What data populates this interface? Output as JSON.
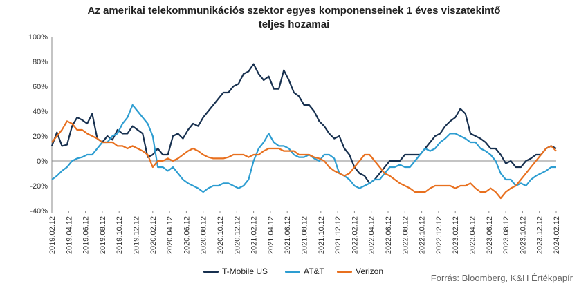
{
  "chart_data": {
    "type": "line",
    "title_line1": "Az amerikai telekommunikációs szektor egyes komponenseinek 1  éves viszatekintő",
    "title_line2": "teljes hozamai",
    "xlabel": "",
    "ylabel": "",
    "ylim": [
      -40,
      100
    ],
    "yticks": [
      "-40%",
      "-20%",
      "0%",
      "20%",
      "40%",
      "60%",
      "80%",
      "100%"
    ],
    "ytick_values": [
      -40,
      -20,
      0,
      20,
      40,
      60,
      80,
      100
    ],
    "xticks": [
      "2019.02.12",
      "2019.04.12",
      "2019.06.12",
      "2019.08.12",
      "2019.10.12",
      "2019.12.12",
      "2020.02.12",
      "2020.04.12",
      "2020.06.12",
      "2020.08.12",
      "2020.10.12",
      "2020.12.12",
      "2021.02.12",
      "2021.04.12",
      "2021.06.12",
      "2021.08.12",
      "2021.10.12",
      "2021.12.12",
      "2022.02.12",
      "2022.04.12",
      "2022.06.12",
      "2022.08.12",
      "2022.10.12",
      "2022.12.12",
      "2023.02.12",
      "2023.04.12",
      "2023.06.12",
      "2023.08.12",
      "2023.10.12",
      "2023.12.12",
      "2024.02.12"
    ],
    "grid": false,
    "legend_position": "bottom",
    "series": [
      {
        "name": "T-Mobile US",
        "color": "#17304f",
        "values": [
          12,
          23,
          12,
          13,
          28,
          35,
          33,
          30,
          38,
          18,
          15,
          20,
          17,
          25,
          22,
          22,
          28,
          25,
          22,
          3,
          5,
          10,
          5,
          5,
          20,
          22,
          18,
          25,
          30,
          28,
          35,
          40,
          45,
          50,
          55,
          55,
          60,
          62,
          70,
          72,
          78,
          70,
          65,
          68,
          58,
          58,
          73,
          65,
          55,
          52,
          45,
          45,
          40,
          32,
          28,
          22,
          18,
          20,
          10,
          5,
          -5,
          -10,
          -12,
          -18,
          -15,
          -10,
          -5,
          0,
          0,
          0,
          5,
          5,
          5,
          5,
          10,
          15,
          20,
          22,
          28,
          32,
          35,
          42,
          38,
          22,
          20,
          18,
          15,
          10,
          10,
          5,
          -2,
          0,
          -5,
          -5,
          0,
          2,
          5,
          5,
          10,
          12,
          10
        ]
      },
      {
        "name": "AT&T",
        "color": "#2d9dd1",
        "values": [
          -15,
          -12,
          -8,
          -5,
          0,
          2,
          3,
          5,
          5,
          10,
          15,
          15,
          20,
          22,
          30,
          35,
          45,
          40,
          35,
          30,
          20,
          -5,
          -5,
          -8,
          -5,
          -10,
          -15,
          -18,
          -20,
          -22,
          -25,
          -22,
          -20,
          -20,
          -18,
          -18,
          -20,
          -22,
          -20,
          -15,
          0,
          10,
          15,
          22,
          15,
          12,
          12,
          10,
          5,
          3,
          3,
          5,
          2,
          0,
          5,
          5,
          2,
          -10,
          -12,
          -15,
          -20,
          -22,
          -20,
          -18,
          -15,
          -15,
          -10,
          -5,
          -5,
          -3,
          -5,
          -5,
          0,
          5,
          10,
          8,
          10,
          15,
          18,
          22,
          22,
          20,
          18,
          15,
          15,
          10,
          8,
          5,
          0,
          -10,
          -15,
          -15,
          -20,
          -18,
          -20,
          -15,
          -12,
          -10,
          -8,
          -5,
          -5
        ]
      },
      {
        "name": "Verizon",
        "color": "#e8701f",
        "values": [
          15,
          20,
          25,
          32,
          30,
          25,
          25,
          22,
          20,
          18,
          15,
          15,
          15,
          12,
          12,
          10,
          12,
          10,
          8,
          5,
          -5,
          0,
          0,
          2,
          0,
          2,
          5,
          8,
          10,
          8,
          5,
          3,
          2,
          2,
          2,
          3,
          5,
          5,
          5,
          3,
          5,
          5,
          8,
          10,
          10,
          10,
          8,
          8,
          8,
          5,
          5,
          5,
          3,
          2,
          0,
          -5,
          -8,
          -10,
          -12,
          -10,
          -5,
          0,
          5,
          5,
          0,
          -5,
          -10,
          -12,
          -15,
          -18,
          -20,
          -22,
          -25,
          -25,
          -25,
          -22,
          -20,
          -20,
          -20,
          -20,
          -22,
          -20,
          -20,
          -18,
          -22,
          -25,
          -25,
          -22,
          -25,
          -30,
          -25,
          -22,
          -20,
          -15,
          -10,
          -5,
          0,
          5,
          10,
          12,
          8
        ]
      }
    ]
  },
  "source": "Forrás: Bloomberg, K&H Értékpapír"
}
